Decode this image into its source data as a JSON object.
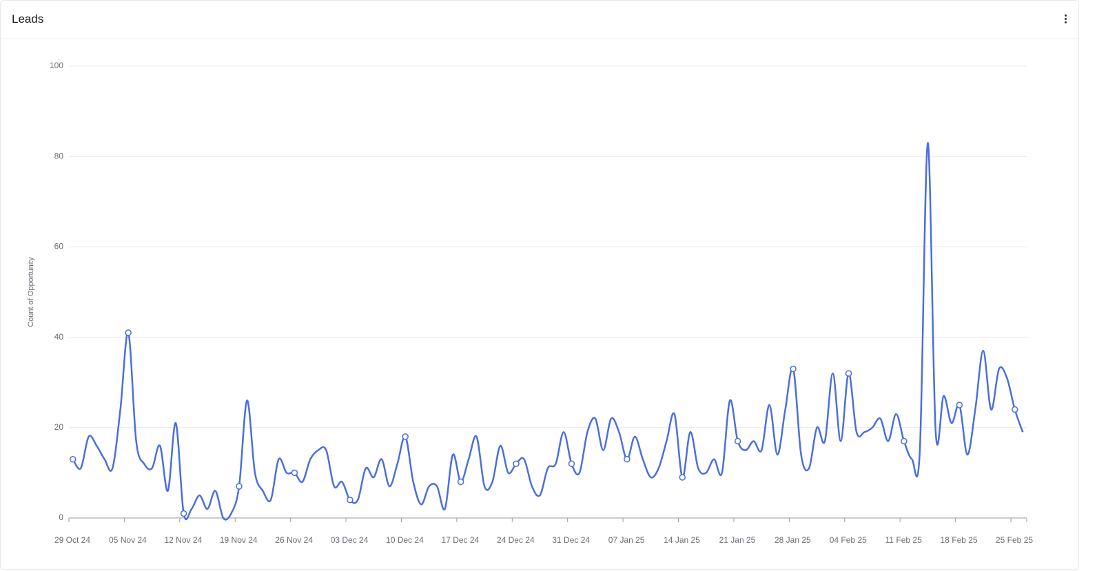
{
  "chart_data": {
    "type": "line",
    "title": "Leads",
    "y_label": "Count of Opportunity",
    "x": [
      "2024-10-29",
      "2024-10-30",
      "2024-10-31",
      "2024-11-01",
      "2024-11-02",
      "2024-11-03",
      "2024-11-04",
      "2024-11-05",
      "2024-11-06",
      "2024-11-07",
      "2024-11-08",
      "2024-11-09",
      "2024-11-10",
      "2024-11-11",
      "2024-11-12",
      "2024-11-13",
      "2024-11-14",
      "2024-11-15",
      "2024-11-16",
      "2024-11-17",
      "2024-11-18",
      "2024-11-19",
      "2024-11-20",
      "2024-11-21",
      "2024-11-22",
      "2024-11-23",
      "2024-11-24",
      "2024-11-25",
      "2024-11-26",
      "2024-11-27",
      "2024-11-28",
      "2024-11-29",
      "2024-11-30",
      "2024-12-01",
      "2024-12-02",
      "2024-12-03",
      "2024-12-04",
      "2024-12-05",
      "2024-12-06",
      "2024-12-07",
      "2024-12-08",
      "2024-12-09",
      "2024-12-10",
      "2024-12-11",
      "2024-12-12",
      "2024-12-13",
      "2024-12-14",
      "2024-12-15",
      "2024-12-16",
      "2024-12-17",
      "2024-12-18",
      "2024-12-19",
      "2024-12-20",
      "2024-12-21",
      "2024-12-22",
      "2024-12-23",
      "2024-12-24",
      "2024-12-25",
      "2024-12-26",
      "2024-12-27",
      "2024-12-28",
      "2024-12-29",
      "2024-12-30",
      "2024-12-31",
      "2025-01-01",
      "2025-01-02",
      "2025-01-03",
      "2025-01-04",
      "2025-01-05",
      "2025-01-06",
      "2025-01-07",
      "2025-01-08",
      "2025-01-09",
      "2025-01-10",
      "2025-01-11",
      "2025-01-12",
      "2025-01-13",
      "2025-01-14",
      "2025-01-15",
      "2025-01-16",
      "2025-01-17",
      "2025-01-18",
      "2025-01-19",
      "2025-01-20",
      "2025-01-21",
      "2025-01-22",
      "2025-01-23",
      "2025-01-24",
      "2025-01-25",
      "2025-01-26",
      "2025-01-27",
      "2025-01-28",
      "2025-01-29",
      "2025-01-30",
      "2025-01-31",
      "2025-02-01",
      "2025-02-02",
      "2025-02-03",
      "2025-02-04",
      "2025-02-05",
      "2025-02-06",
      "2025-02-07",
      "2025-02-08",
      "2025-02-09",
      "2025-02-10",
      "2025-02-11",
      "2025-02-12",
      "2025-02-13",
      "2025-02-14",
      "2025-02-15",
      "2025-02-16",
      "2025-02-17",
      "2025-02-18",
      "2025-02-19",
      "2025-02-20",
      "2025-02-21",
      "2025-02-22",
      "2025-02-23",
      "2025-02-24",
      "2025-02-25",
      "2025-02-26"
    ],
    "series": [
      {
        "name": "Count of Opportunity",
        "color": "#4a6ee0",
        "values": [
          13,
          11,
          18,
          16,
          13,
          11,
          24,
          41,
          17,
          12,
          11,
          16,
          6,
          21,
          1,
          2,
          5,
          2,
          6,
          0,
          1,
          7,
          26,
          10,
          6,
          4,
          13,
          10,
          10,
          8,
          13,
          15,
          15,
          7,
          8,
          4,
          4,
          11,
          9,
          13,
          7,
          12,
          18,
          8,
          3,
          7,
          7,
          2,
          14,
          8,
          13,
          18,
          7,
          8,
          16,
          10,
          12,
          13,
          7,
          5,
          11,
          12,
          19,
          12,
          10,
          19,
          22,
          15,
          22,
          19,
          13,
          18,
          13,
          9,
          11,
          17,
          23,
          9,
          19,
          11,
          10,
          13,
          10,
          26,
          17,
          15,
          17,
          15,
          25,
          14,
          24,
          33,
          14,
          11,
          20,
          17,
          32,
          17,
          32,
          19,
          19,
          20,
          22,
          17,
          23,
          17,
          13,
          15,
          83,
          19,
          27,
          21,
          25,
          14,
          24,
          37,
          24,
          33,
          31,
          24,
          19
        ]
      }
    ],
    "xlim": [
      "2024-10-29",
      "2025-02-27"
    ],
    "xticks": [
      {
        "value": "2024-10-29",
        "label": "29 Oct 24"
      },
      {
        "value": "2024-11-05",
        "label": "05 Nov 24"
      },
      {
        "value": "2024-11-12",
        "label": "12 Nov 24"
      },
      {
        "value": "2024-11-19",
        "label": "19 Nov 24"
      },
      {
        "value": "2024-11-26",
        "label": "26 Nov 24"
      },
      {
        "value": "2024-12-03",
        "label": "03 Dec 24"
      },
      {
        "value": "2024-12-10",
        "label": "10 Dec 24"
      },
      {
        "value": "2024-12-17",
        "label": "17 Dec 24"
      },
      {
        "value": "2024-12-24",
        "label": "24 Dec 24"
      },
      {
        "value": "2024-12-31",
        "label": "31 Dec 24"
      },
      {
        "value": "2025-01-07",
        "label": "07 Jan 25"
      },
      {
        "value": "2025-01-14",
        "label": "14 Jan 25"
      },
      {
        "value": "2025-01-21",
        "label": "21 Jan 25"
      },
      {
        "value": "2025-01-28",
        "label": "28 Jan 25"
      },
      {
        "value": "2025-02-04",
        "label": "04 Feb 25"
      },
      {
        "value": "2025-02-11",
        "label": "11 Feb 25"
      },
      {
        "value": "2025-02-18",
        "label": "18 Feb 25"
      },
      {
        "value": "2025-02-25",
        "label": "25 Feb 25"
      }
    ],
    "ylim": [
      0,
      100
    ],
    "yticks": [
      0,
      20,
      40,
      60,
      80,
      100
    ],
    "grid": true
  }
}
